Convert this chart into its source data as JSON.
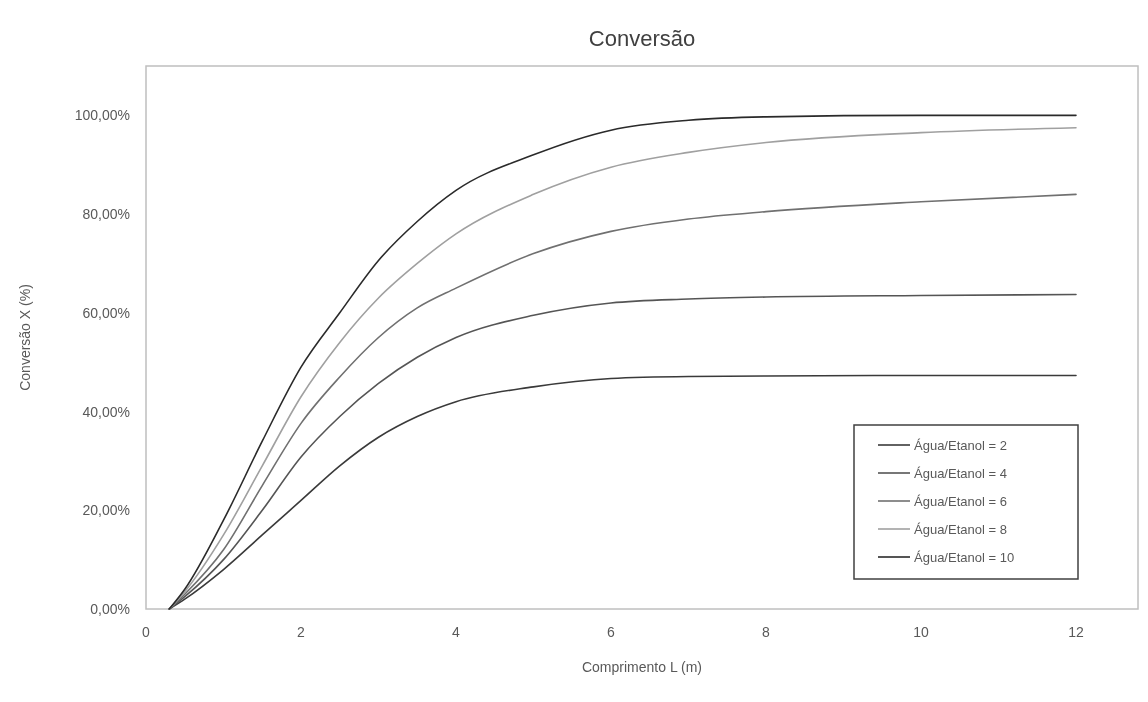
{
  "chart_data": {
    "type": "line",
    "title": "Conversão",
    "xlabel": "Comprimento L (m)",
    "ylabel": "Conversão X (%)",
    "xlim": [
      0,
      12.8
    ],
    "xticks": [
      0,
      2,
      4,
      6,
      8,
      10,
      12
    ],
    "ylim": [
      0,
      110
    ],
    "yticks": [
      {
        "value": 0,
        "label": "0,00%"
      },
      {
        "value": 20,
        "label": "20,00%"
      },
      {
        "value": 40,
        "label": "40,00%"
      },
      {
        "value": 60,
        "label": "60,00%"
      },
      {
        "value": 80,
        "label": "80,00%"
      },
      {
        "value": 100,
        "label": "100,00%"
      }
    ],
    "x": [
      0.3,
      0.5,
      1,
      1.5,
      2,
      2.5,
      3,
      3.5,
      4,
      5,
      6,
      7,
      8,
      10,
      12
    ],
    "grid": false,
    "legend": "bottom right",
    "marker": "none",
    "line_style": "solid",
    "series": [
      {
        "name": "Água/Etanol = 2",
        "color": "#3a3a3a",
        "values": [
          0,
          2,
          8,
          15,
          22,
          29,
          34.8,
          39,
          42,
          45,
          46.7,
          47.1,
          47.2,
          47.3,
          47.3
        ]
      },
      {
        "name": "Água/Etanol = 4",
        "color": "#555555",
        "values": [
          0,
          2.5,
          10,
          20,
          30.8,
          39,
          45.7,
          51,
          55,
          59.5,
          62,
          62.8,
          63.2,
          63.5,
          63.7
        ]
      },
      {
        "name": "Água/Etanol = 6",
        "color": "#707070",
        "values": [
          0,
          3,
          12,
          25,
          37.6,
          47,
          55,
          61,
          65,
          72,
          76.5,
          79,
          80.5,
          82.5,
          84
        ]
      },
      {
        "name": "Água/Etanol = 8",
        "color": "#a0a0a0",
        "values": [
          0,
          3.5,
          15,
          29,
          43,
          54,
          63,
          70,
          76,
          84,
          89.5,
          92.5,
          94.5,
          96.5,
          97.5
        ]
      },
      {
        "name": "Água/Etanol = 10",
        "color": "#2a2a2a",
        "values": [
          0,
          4,
          18,
          34,
          49,
          60,
          70.6,
          78.5,
          84.8,
          92,
          97,
          99,
          99.7,
          100,
          100
        ]
      }
    ]
  }
}
